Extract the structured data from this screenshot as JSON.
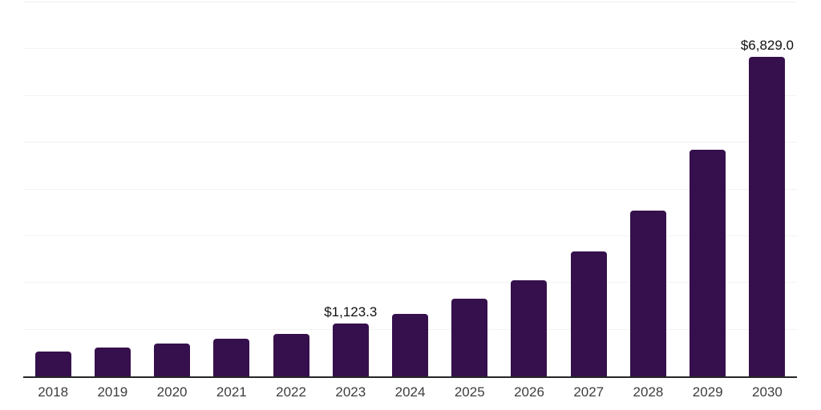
{
  "chart_data": {
    "type": "bar",
    "title": "",
    "xlabel": "",
    "ylabel": "",
    "categories": [
      "2018",
      "2019",
      "2020",
      "2021",
      "2022",
      "2023",
      "2024",
      "2025",
      "2026",
      "2027",
      "2028",
      "2029",
      "2030"
    ],
    "values": [
      530,
      620,
      705,
      800,
      915,
      1123.3,
      1345,
      1660,
      2050,
      2665,
      3540,
      4850,
      6829
    ],
    "data_labels": {
      "2023": "$1,123.3",
      "2030": "$6,829.0"
    },
    "ylim": [
      0,
      8000
    ],
    "gridline_step": 1000,
    "grid": "horizontal",
    "y_tick_labels_shown": false,
    "legend_position": "none",
    "colors": {
      "bar": "#36104C",
      "axis_line": "#262626",
      "gridline": "#f2f2f2",
      "tick_label": "#3d3d3d",
      "data_label": "#111111",
      "background": "#ffffff"
    }
  }
}
